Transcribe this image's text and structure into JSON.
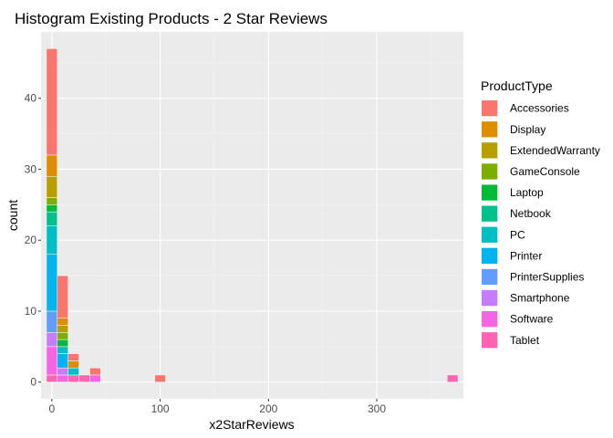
{
  "chart_data": {
    "type": "bar",
    "subtype": "stacked-histogram",
    "title": "Histogram Existing Products - 2 Star Reviews",
    "xlabel": "x2StarReviews",
    "ylabel": "count",
    "xlim": [
      -10,
      380
    ],
    "ylim": [
      -2.35,
      49.35
    ],
    "x_ticks": [
      0,
      100,
      200,
      300
    ],
    "y_ticks": [
      0,
      10,
      20,
      30,
      40
    ],
    "x_tick_labels": [
      "0",
      "100",
      "200",
      "300"
    ],
    "y_tick_labels": [
      "0",
      "10",
      "20",
      "30",
      "40"
    ],
    "bin_width": 10,
    "grid": true,
    "legend_position": "right",
    "legend_title": "ProductType",
    "series": [
      {
        "name": "Accessories",
        "color": "#F8766D",
        "bins": [
          {
            "x": 0,
            "count": 15
          },
          {
            "x": 10,
            "count": 6
          },
          {
            "x": 20,
            "count": 1
          },
          {
            "x": 40,
            "count": 1
          },
          {
            "x": 100,
            "count": 1
          }
        ]
      },
      {
        "name": "Display",
        "color": "#DE8C00",
        "bins": [
          {
            "x": 0,
            "count": 3
          },
          {
            "x": 10,
            "count": 1
          },
          {
            "x": 20,
            "count": 1
          }
        ]
      },
      {
        "name": "ExtendedWarranty",
        "color": "#B79F00",
        "bins": [
          {
            "x": 0,
            "count": 3
          },
          {
            "x": 10,
            "count": 1
          }
        ]
      },
      {
        "name": "GameConsole",
        "color": "#7CAE00",
        "bins": [
          {
            "x": 0,
            "count": 1
          },
          {
            "x": 10,
            "count": 1
          }
        ]
      },
      {
        "name": "Laptop",
        "color": "#00BA38",
        "bins": [
          {
            "x": 0,
            "count": 1
          },
          {
            "x": 10,
            "count": 1
          }
        ]
      },
      {
        "name": "Netbook",
        "color": "#00C08B",
        "bins": [
          {
            "x": 0,
            "count": 2
          }
        ]
      },
      {
        "name": "PC",
        "color": "#00BFC4",
        "bins": [
          {
            "x": 0,
            "count": 4
          },
          {
            "x": 10,
            "count": 1
          },
          {
            "x": 20,
            "count": 1
          }
        ]
      },
      {
        "name": "Printer",
        "color": "#00B4F0",
        "bins": [
          {
            "x": 0,
            "count": 8
          },
          {
            "x": 10,
            "count": 2
          }
        ]
      },
      {
        "name": "PrinterSupplies",
        "color": "#619CFF",
        "bins": [
          {
            "x": 0,
            "count": 3
          }
        ]
      },
      {
        "name": "Smartphone",
        "color": "#C77CFF",
        "bins": [
          {
            "x": 0,
            "count": 2
          },
          {
            "x": 10,
            "count": 1
          }
        ]
      },
      {
        "name": "Software",
        "color": "#F564E3",
        "bins": [
          {
            "x": 0,
            "count": 4
          },
          {
            "x": 10,
            "count": 1
          },
          {
            "x": 40,
            "count": 1
          }
        ]
      },
      {
        "name": "Tablet",
        "color": "#FF64B0",
        "bins": [
          {
            "x": 0,
            "count": 1
          },
          {
            "x": 20,
            "count": 1
          },
          {
            "x": 30,
            "count": 1
          },
          {
            "x": 370,
            "count": 1
          }
        ]
      }
    ]
  }
}
